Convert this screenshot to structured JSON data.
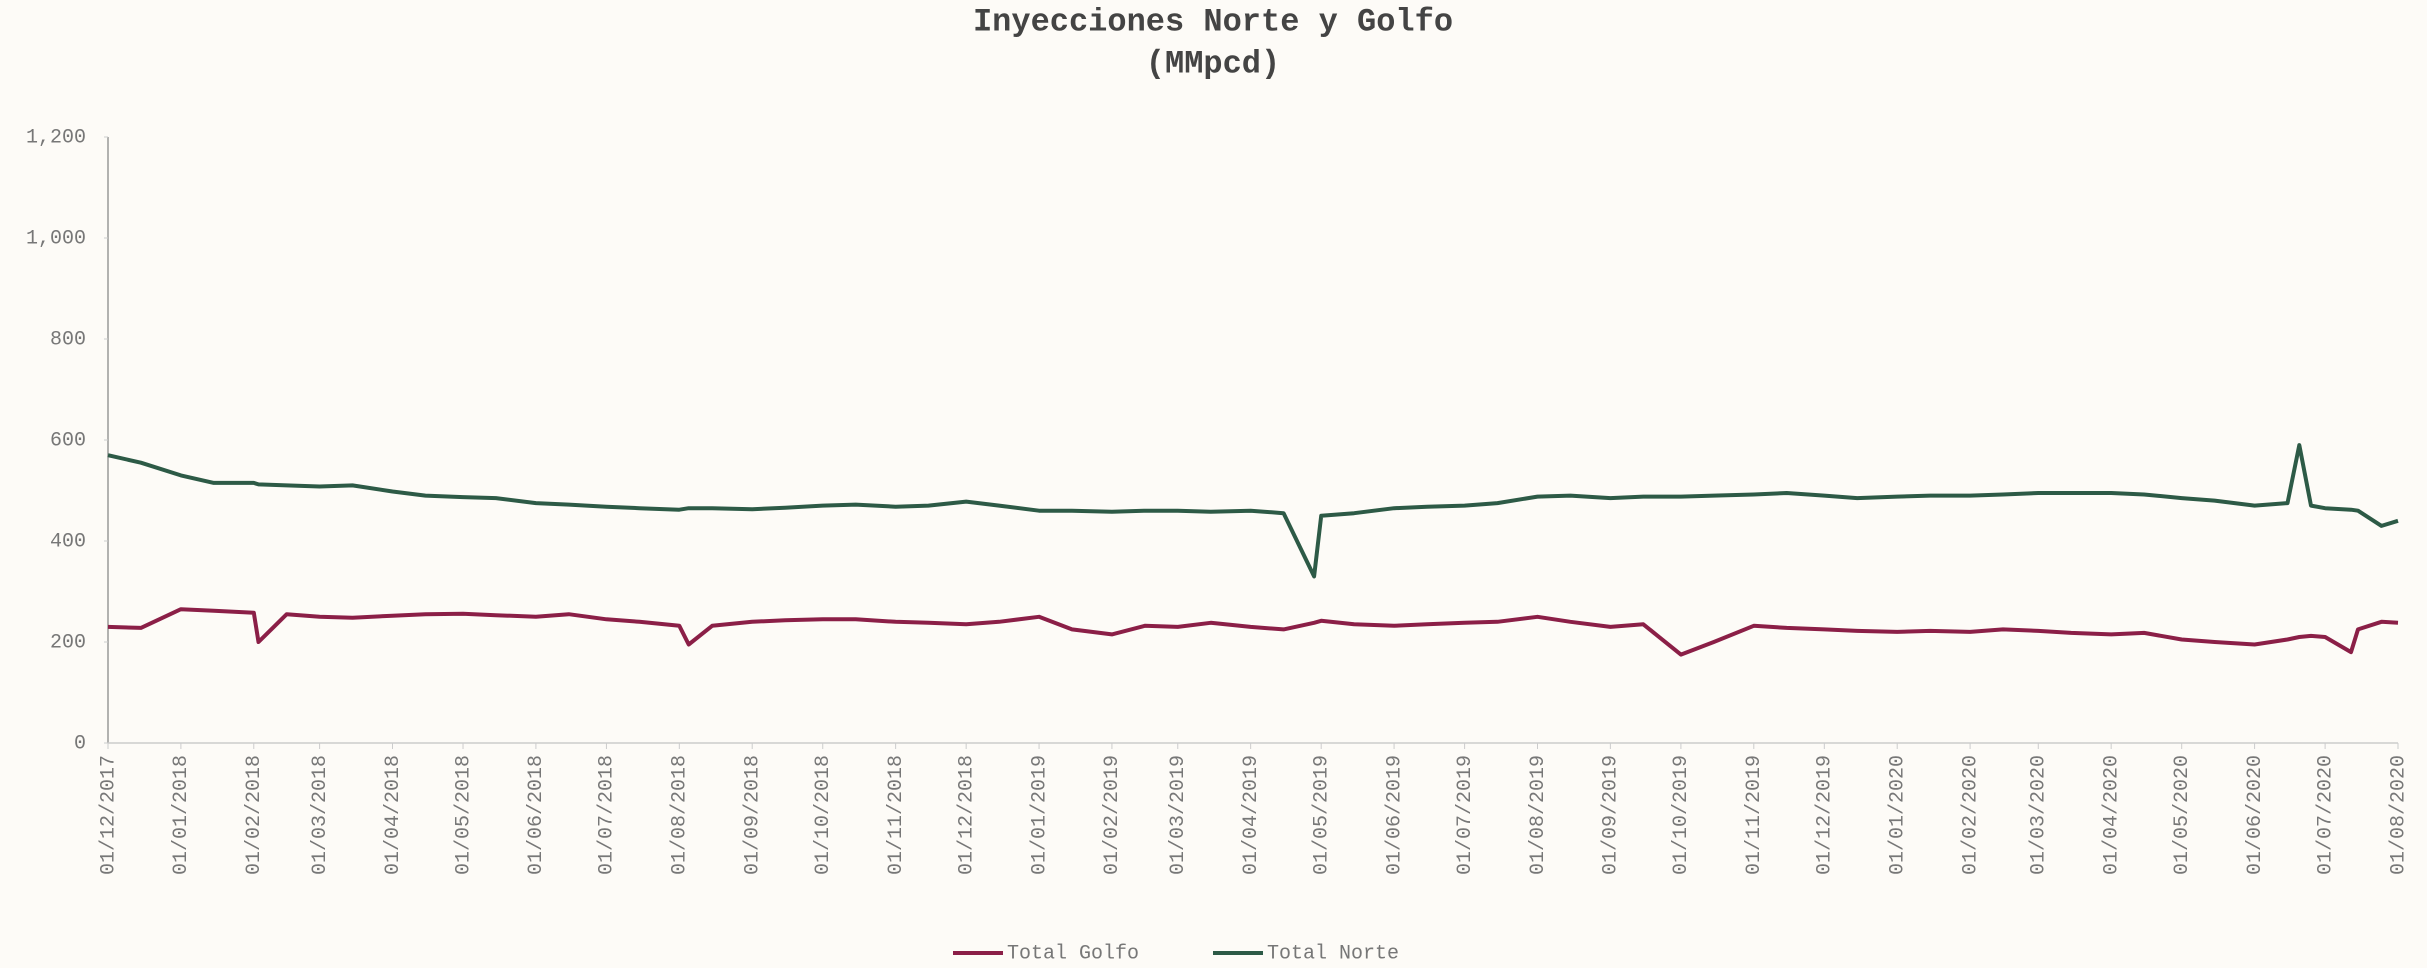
{
  "chart_data": {
    "type": "line",
    "title": "Inyecciones Norte y Golfo",
    "subtitle": "(MMpcd)",
    "x": [
      "01/12/2017",
      "15/12/2017",
      "01/01/2018",
      "15/01/2018",
      "01/02/2018",
      "03/02/2018",
      "15/02/2018",
      "01/03/2018",
      "15/03/2018",
      "01/04/2018",
      "15/04/2018",
      "01/05/2018",
      "15/05/2018",
      "01/06/2018",
      "15/06/2018",
      "01/07/2018",
      "15/07/2018",
      "01/08/2018",
      "05/08/2018",
      "15/08/2018",
      "01/09/2018",
      "15/09/2018",
      "01/10/2018",
      "15/10/2018",
      "01/11/2018",
      "15/11/2018",
      "01/12/2018",
      "15/12/2018",
      "01/01/2019",
      "15/01/2019",
      "01/02/2019",
      "15/02/2019",
      "01/03/2019",
      "15/03/2019",
      "01/04/2019",
      "15/04/2019",
      "28/04/2019",
      "01/05/2019",
      "15/05/2019",
      "01/06/2019",
      "15/06/2019",
      "01/07/2019",
      "15/07/2019",
      "01/08/2019",
      "15/08/2019",
      "01/09/2019",
      "15/09/2019",
      "01/10/2019",
      "15/10/2019",
      "01/11/2019",
      "15/11/2019",
      "01/12/2019",
      "15/12/2019",
      "01/01/2020",
      "15/01/2020",
      "01/02/2020",
      "15/02/2020",
      "01/03/2020",
      "15/03/2020",
      "01/04/2020",
      "15/04/2020",
      "01/05/2020",
      "15/05/2020",
      "01/06/2020",
      "15/06/2020",
      "20/06/2020",
      "25/06/2020",
      "01/07/2020",
      "12/07/2020",
      "15/07/2020",
      "25/07/2020",
      "01/08/2020"
    ],
    "series": [
      {
        "name": "Total Golfo",
        "color": "#8b1f47",
        "values": [
          230,
          228,
          265,
          262,
          258,
          200,
          255,
          250,
          248,
          252,
          255,
          256,
          253,
          250,
          255,
          245,
          240,
          232,
          195,
          232,
          240,
          243,
          245,
          245,
          240,
          238,
          235,
          240,
          250,
          225,
          215,
          232,
          230,
          238,
          230,
          225,
          238,
          242,
          235,
          232,
          235,
          238,
          240,
          250,
          240,
          230,
          235,
          175,
          200,
          232,
          228,
          225,
          222,
          220,
          222,
          220,
          225,
          222,
          218,
          215,
          218,
          205,
          200,
          195,
          205,
          210,
          212,
          210,
          180,
          225,
          240,
          238
        ]
      },
      {
        "name": "Total Norte",
        "color": "#2d5a46",
        "values": [
          570,
          555,
          530,
          515,
          515,
          512,
          510,
          508,
          510,
          498,
          490,
          487,
          485,
          475,
          472,
          468,
          465,
          462,
          465,
          465,
          463,
          466,
          470,
          472,
          468,
          470,
          478,
          470,
          460,
          460,
          458,
          460,
          460,
          458,
          460,
          455,
          330,
          450,
          455,
          465,
          468,
          470,
          475,
          488,
          490,
          485,
          488,
          488,
          490,
          492,
          495,
          490,
          485,
          488,
          490,
          490,
          492,
          495,
          495,
          495,
          492,
          485,
          480,
          470,
          475,
          590,
          470,
          465,
          462,
          460,
          430,
          440
        ]
      }
    ],
    "xticks": [
      "01/12/2017",
      "01/01/2018",
      "01/02/2018",
      "01/03/2018",
      "01/04/2018",
      "01/05/2018",
      "01/06/2018",
      "01/07/2018",
      "01/08/2018",
      "01/09/2018",
      "01/10/2018",
      "01/11/2018",
      "01/12/2018",
      "01/01/2019",
      "01/02/2019",
      "01/03/2019",
      "01/04/2019",
      "01/05/2019",
      "01/06/2019",
      "01/07/2019",
      "01/08/2019",
      "01/09/2019",
      "01/10/2019",
      "01/11/2019",
      "01/12/2019",
      "01/01/2020",
      "01/02/2020",
      "01/03/2020",
      "01/04/2020",
      "01/05/2020",
      "01/06/2020",
      "01/07/2020",
      "01/08/2020"
    ],
    "ylim": [
      0,
      1200
    ],
    "yticks": [
      0,
      200,
      400,
      600,
      800,
      {
        "value": 1000,
        "label": "1,000"
      },
      {
        "value": 1200,
        "label": "1,200"
      }
    ],
    "grid": false,
    "legend": "bottom"
  }
}
